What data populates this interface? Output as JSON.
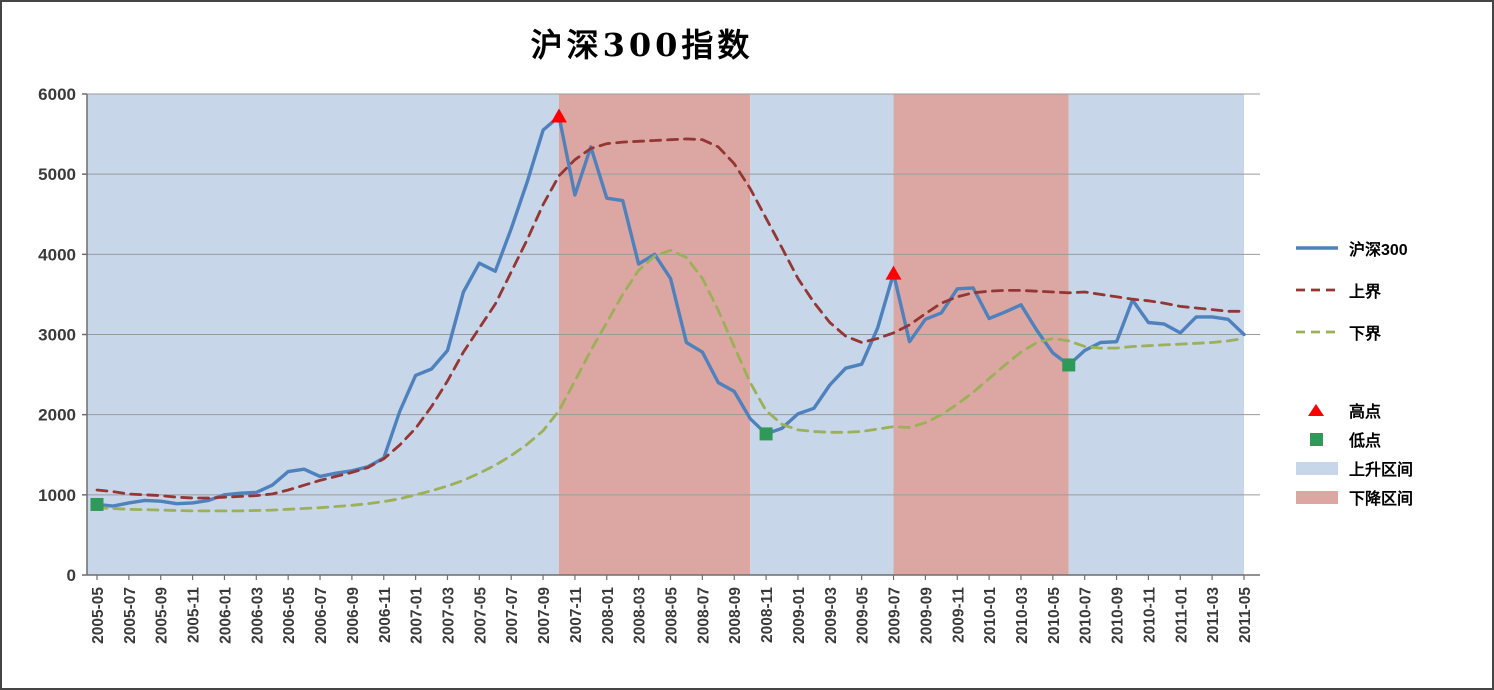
{
  "chart": {
    "title": "沪深300指数",
    "legend": {
      "series": [
        {
          "label": "沪深300",
          "color": "#4F81BD",
          "style": "solid"
        },
        {
          "label": "上界",
          "color": "#943634",
          "style": "dashed"
        },
        {
          "label": "下界",
          "color": "#9BB059",
          "style": "dashed"
        }
      ],
      "markers": [
        {
          "label": "高点",
          "color": "#FF0000",
          "shape": "triangle"
        },
        {
          "label": "低点",
          "color": "#2E9958",
          "shape": "square"
        }
      ],
      "bands": [
        {
          "label": "上升区间",
          "color": "#C7D6E9"
        },
        {
          "label": "下降区间",
          "color": "#DCA7A3"
        }
      ]
    }
  },
  "chart_data": {
    "type": "line",
    "title": "沪深300指数",
    "grid": true,
    "legend_position": "right",
    "ylim": [
      0,
      6000
    ],
    "yticks": [
      0,
      1000,
      2000,
      3000,
      4000,
      5000,
      6000
    ],
    "x_tick_step": 2,
    "x": [
      "2005-05",
      "2005-06",
      "2005-07",
      "2005-08",
      "2005-09",
      "2005-10",
      "2005-11",
      "2005-12",
      "2006-01",
      "2006-02",
      "2006-03",
      "2006-04",
      "2006-05",
      "2006-06",
      "2006-07",
      "2006-08",
      "2006-09",
      "2006-10",
      "2006-11",
      "2006-12",
      "2007-01",
      "2007-02",
      "2007-03",
      "2007-04",
      "2007-05",
      "2007-06",
      "2007-07",
      "2007-08",
      "2007-09",
      "2007-10",
      "2007-11",
      "2007-12",
      "2008-01",
      "2008-02",
      "2008-03",
      "2008-04",
      "2008-05",
      "2008-06",
      "2008-07",
      "2008-08",
      "2008-09",
      "2008-10",
      "2008-11",
      "2008-12",
      "2009-01",
      "2009-02",
      "2009-03",
      "2009-04",
      "2009-05",
      "2009-06",
      "2009-07",
      "2009-08",
      "2009-09",
      "2009-10",
      "2009-11",
      "2009-12",
      "2010-01",
      "2010-02",
      "2010-03",
      "2010-04",
      "2010-05",
      "2010-06",
      "2010-07",
      "2010-08",
      "2010-09",
      "2010-10",
      "2010-11",
      "2010-12",
      "2011-01",
      "2011-02",
      "2011-03",
      "2011-04",
      "2011-05"
    ],
    "series": [
      {
        "name": "沪深300",
        "color": "#4F81BD",
        "style": "solid",
        "values": [
          880,
          860,
          900,
          930,
          920,
          890,
          900,
          930,
          1000,
          1020,
          1030,
          1120,
          1290,
          1320,
          1230,
          1270,
          1300,
          1350,
          1460,
          2040,
          2490,
          2570,
          2800,
          3530,
          3890,
          3790,
          4320,
          4900,
          5550,
          5720,
          4740,
          5340,
          4700,
          4670,
          3880,
          4000,
          3700,
          2900,
          2780,
          2400,
          2290,
          1950,
          1760,
          1830,
          2010,
          2080,
          2370,
          2580,
          2630,
          3080,
          3760,
          2910,
          3190,
          3270,
          3570,
          3580,
          3200,
          3280,
          3370,
          3050,
          2770,
          2620,
          2800,
          2900,
          2910,
          3430,
          3150,
          3130,
          3020,
          3220,
          3220,
          3190,
          3000
        ]
      },
      {
        "name": "上界",
        "color": "#943634",
        "style": "dashed",
        "values": [
          1060,
          1040,
          1010,
          1000,
          990,
          970,
          960,
          960,
          970,
          980,
          990,
          1010,
          1060,
          1120,
          1180,
          1230,
          1280,
          1340,
          1450,
          1620,
          1830,
          2100,
          2420,
          2780,
          3080,
          3380,
          3780,
          4180,
          4620,
          4980,
          5180,
          5320,
          5380,
          5400,
          5410,
          5420,
          5430,
          5440,
          5430,
          5340,
          5130,
          4820,
          4450,
          4080,
          3700,
          3400,
          3150,
          2980,
          2900,
          2950,
          3020,
          3120,
          3260,
          3390,
          3470,
          3520,
          3540,
          3550,
          3550,
          3540,
          3530,
          3520,
          3530,
          3500,
          3470,
          3440,
          3420,
          3390,
          3350,
          3330,
          3310,
          3290,
          3290
        ]
      },
      {
        "name": "下界",
        "color": "#9BB059",
        "style": "dashed",
        "values": [
          840,
          830,
          820,
          815,
          810,
          805,
          800,
          800,
          800,
          800,
          805,
          810,
          820,
          830,
          840,
          855,
          870,
          890,
          915,
          950,
          1000,
          1050,
          1110,
          1180,
          1270,
          1370,
          1490,
          1630,
          1800,
          2050,
          2420,
          2800,
          3150,
          3500,
          3800,
          3980,
          4050,
          3960,
          3700,
          3300,
          2850,
          2400,
          2050,
          1880,
          1810,
          1790,
          1780,
          1780,
          1790,
          1820,
          1850,
          1840,
          1900,
          2000,
          2130,
          2280,
          2450,
          2620,
          2780,
          2900,
          2950,
          2920,
          2850,
          2830,
          2830,
          2850,
          2860,
          2870,
          2880,
          2890,
          2900,
          2920,
          2950
        ]
      }
    ],
    "point_markers": {
      "high": {
        "name": "高点",
        "color": "#FF0000",
        "shape": "triangle",
        "points": [
          {
            "month": "2007-10",
            "value": 5720
          },
          {
            "month": "2009-07",
            "value": 3760
          }
        ]
      },
      "low": {
        "name": "低点",
        "color": "#2E9958",
        "shape": "square",
        "points": [
          {
            "month": "2005-05",
            "value": 880
          },
          {
            "month": "2008-11",
            "value": 1760
          },
          {
            "month": "2010-06",
            "value": 2620
          }
        ]
      }
    },
    "bands": [
      {
        "kind": "上升区间",
        "from": "2005-05",
        "to": "2007-10",
        "color": "#C7D6E9"
      },
      {
        "kind": "下降区间",
        "from": "2007-10",
        "to": "2008-10",
        "color": "#DCA7A3"
      },
      {
        "kind": "上升区间",
        "from": "2008-10",
        "to": "2009-07",
        "color": "#C7D6E9"
      },
      {
        "kind": "下降区间",
        "from": "2009-07",
        "to": "2010-06",
        "color": "#DCA7A3"
      },
      {
        "kind": "上升区间",
        "from": "2010-06",
        "to": "2011-05",
        "color": "#C7D6E9"
      }
    ]
  }
}
